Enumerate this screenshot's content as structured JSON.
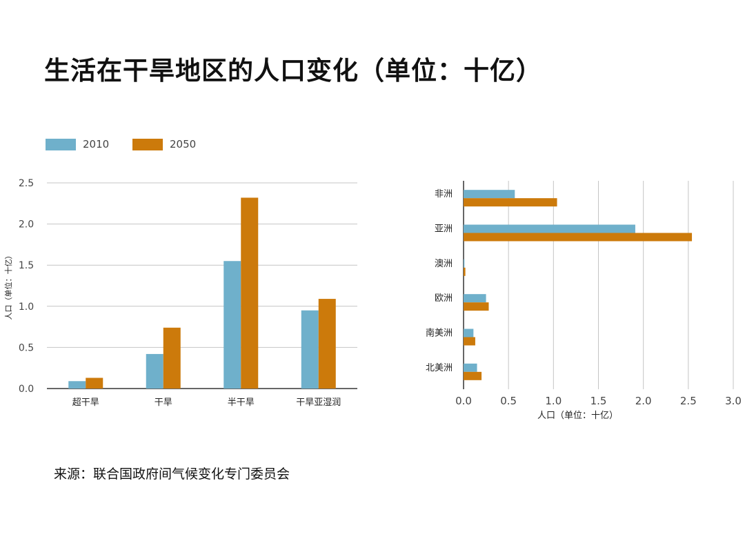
{
  "page": {
    "title": "生活在干旱地区的人口变化（单位：十亿）",
    "source": "来源：联合国政府间气候变化专门委员会"
  },
  "colors": {
    "series_2010": "#6fb0cb",
    "series_2050": "#cc7a0b",
    "grid": "#c4c4c4",
    "axis": "#666666"
  },
  "chart_data": [
    {
      "type": "bar",
      "orientation": "vertical",
      "categories": [
        "超干旱",
        "干旱",
        "半干旱",
        "干旱亚湿润"
      ],
      "series": [
        {
          "name": "2010",
          "values": [
            0.09,
            0.42,
            1.55,
            0.95
          ]
        },
        {
          "name": "2050",
          "values": [
            0.13,
            0.74,
            2.32,
            1.09
          ]
        }
      ],
      "xlabel": "",
      "ylabel": "人口（单位：十亿）",
      "ylim": [
        0,
        2.5
      ],
      "yticks": [
        "0.0",
        "0.5",
        "1.0",
        "1.5",
        "2.0",
        "2.5"
      ],
      "grid": true,
      "legend": "top-left"
    },
    {
      "type": "bar",
      "orientation": "horizontal",
      "categories": [
        "非洲",
        "亚洲",
        "澳洲",
        "欧洲",
        "南美洲",
        "北美洲"
      ],
      "series": [
        {
          "name": "2010",
          "values": [
            0.57,
            1.91,
            0.01,
            0.25,
            0.11,
            0.15
          ]
        },
        {
          "name": "2050",
          "values": [
            1.04,
            2.54,
            0.02,
            0.28,
            0.13,
            0.2
          ]
        }
      ],
      "xlabel": "人口（单位：十亿）",
      "ylabel": "",
      "xlim": [
        0,
        3.0
      ],
      "xticks": [
        "0.0",
        "0.5",
        "1.0",
        "1.5",
        "2.0",
        "2.5",
        "3.0"
      ],
      "grid": true
    }
  ]
}
